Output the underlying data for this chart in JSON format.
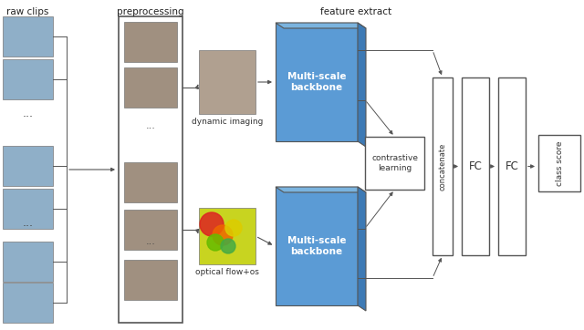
{
  "bg_color": "#ffffff",
  "raw_clips_label": "raw clips",
  "preprocessing_label": "preprocessing",
  "feature_extract_label": "feature extract",
  "dynamic_imaging_label": "dynamic imaging",
  "optical_flow_label": "optical flow+os",
  "contrastive_label": "contrastive\nlearning",
  "concatenate_label": "concatenate",
  "fc_label": "FC",
  "class_score_label": "class score",
  "multiscale_label": "Multi-scale\nbackbone",
  "blue_color": "#5b9bd5",
  "blue_top": "#7ab3de",
  "blue_right": "#3d7ab5",
  "face_raw_color": "#8fafc8",
  "face_prep_color": "#a09080",
  "dyn_face_color": "#b0a090",
  "optical_bg": "#c8d020",
  "edge_color": "#555555",
  "arrow_color": "#555555"
}
